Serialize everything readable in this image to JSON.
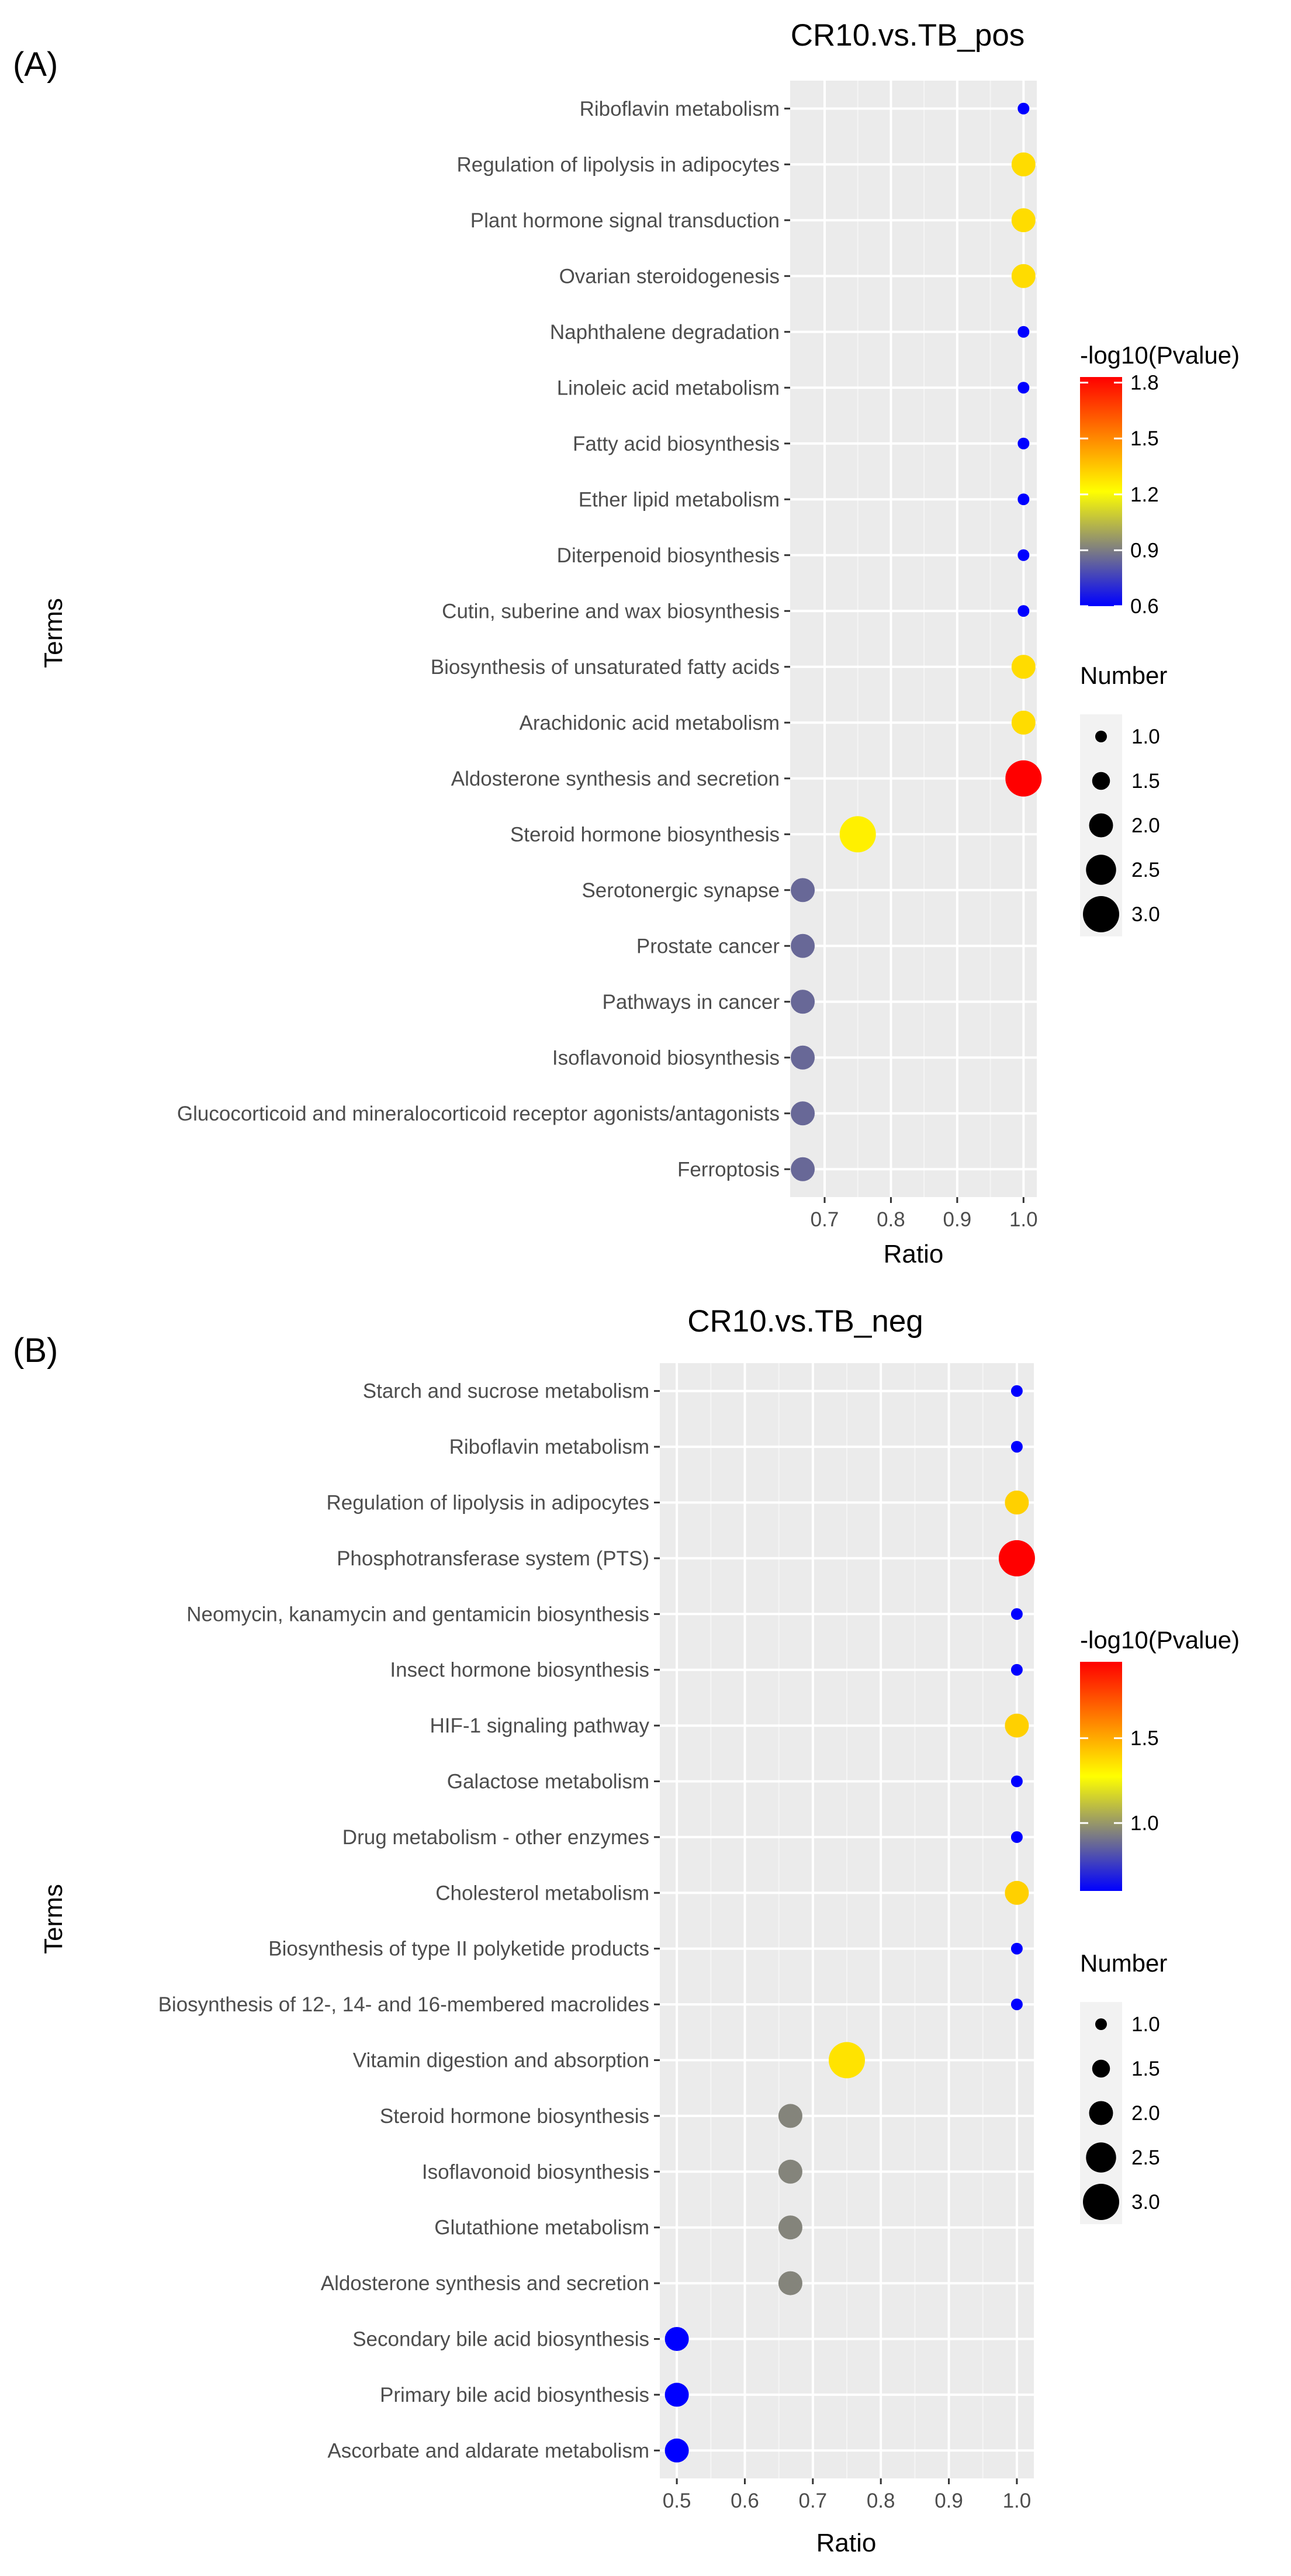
{
  "chart_data": [
    {
      "panel_label": "(A)",
      "type": "scatter",
      "title": "CR10.vs.TB_pos",
      "xlabel": "Ratio",
      "ylabel": "Terms",
      "xlim": [
        0.648,
        1.02
      ],
      "xticks": [
        0.7,
        0.8,
        0.9,
        1.0
      ],
      "xtick_labels": [
        "0.7",
        "0.8",
        "0.9",
        "1.0"
      ],
      "color_legend": {
        "title": "-log10(Pvalue)",
        "min": 0.6,
        "max": 1.83,
        "ticks": [
          0.6,
          0.9,
          1.2,
          1.5,
          1.8
        ],
        "tick_labels": [
          "0.6",
          "0.9",
          "1.2",
          "1.5",
          "1.8"
        ],
        "colors": [
          "#0000ff",
          "#ffff00",
          "#ff0000"
        ]
      },
      "size_legend": {
        "title": "Number",
        "values": [
          1.0,
          1.5,
          2.0,
          2.5,
          3.0
        ],
        "labels": [
          "1.0",
          "1.5",
          "2.0",
          "2.5",
          "3.0"
        ]
      },
      "points": [
        {
          "term": "Riboflavin metabolism",
          "ratio": 1.0,
          "pvalue_log": 0.6,
          "number": 1
        },
        {
          "term": "Regulation of lipolysis in adipocytes",
          "ratio": 1.0,
          "pvalue_log": 1.3,
          "number": 2
        },
        {
          "term": "Plant hormone signal transduction",
          "ratio": 1.0,
          "pvalue_log": 1.3,
          "number": 2
        },
        {
          "term": "Ovarian steroidogenesis",
          "ratio": 1.0,
          "pvalue_log": 1.3,
          "number": 2
        },
        {
          "term": "Naphthalene degradation",
          "ratio": 1.0,
          "pvalue_log": 0.6,
          "number": 1
        },
        {
          "term": "Linoleic acid metabolism",
          "ratio": 1.0,
          "pvalue_log": 0.6,
          "number": 1
        },
        {
          "term": "Fatty acid biosynthesis",
          "ratio": 1.0,
          "pvalue_log": 0.6,
          "number": 1
        },
        {
          "term": "Ether lipid metabolism",
          "ratio": 1.0,
          "pvalue_log": 0.6,
          "number": 1
        },
        {
          "term": "Diterpenoid biosynthesis",
          "ratio": 1.0,
          "pvalue_log": 0.6,
          "number": 1
        },
        {
          "term": "Cutin, suberine and wax biosynthesis",
          "ratio": 1.0,
          "pvalue_log": 0.6,
          "number": 1
        },
        {
          "term": "Biosynthesis of unsaturated fatty acids",
          "ratio": 1.0,
          "pvalue_log": 1.3,
          "number": 2
        },
        {
          "term": "Arachidonic acid metabolism",
          "ratio": 1.0,
          "pvalue_log": 1.3,
          "number": 2
        },
        {
          "term": "Aldosterone synthesis and secretion",
          "ratio": 1.0,
          "pvalue_log": 1.83,
          "number": 3
        },
        {
          "term": "Steroid hormone biosynthesis",
          "ratio": 0.75,
          "pvalue_log": 1.25,
          "number": 3
        },
        {
          "term": "Serotonergic synapse",
          "ratio": 0.667,
          "pvalue_log": 0.85,
          "number": 2
        },
        {
          "term": "Prostate cancer",
          "ratio": 0.667,
          "pvalue_log": 0.85,
          "number": 2
        },
        {
          "term": "Pathways in cancer",
          "ratio": 0.667,
          "pvalue_log": 0.85,
          "number": 2
        },
        {
          "term": "Isoflavonoid biosynthesis",
          "ratio": 0.667,
          "pvalue_log": 0.85,
          "number": 2
        },
        {
          "term": "Glucocorticoid and mineralocorticoid receptor agonists/antagonists",
          "ratio": 0.667,
          "pvalue_log": 0.85,
          "number": 2
        },
        {
          "term": "Ferroptosis",
          "ratio": 0.667,
          "pvalue_log": 0.85,
          "number": 2
        }
      ]
    },
    {
      "panel_label": "(B)",
      "type": "scatter",
      "title": "CR10.vs.TB_neg",
      "xlabel": "Ratio",
      "ylabel": "Terms",
      "xlim": [
        0.475,
        1.025
      ],
      "xticks": [
        0.5,
        0.6,
        0.7,
        0.8,
        0.9,
        1.0
      ],
      "xtick_labels": [
        "0.5",
        "0.6",
        "0.7",
        "0.8",
        "0.9",
        "1.0"
      ],
      "color_legend": {
        "title": "-log10(Pvalue)",
        "min": 0.6,
        "max": 1.95,
        "ticks": [
          1.0,
          1.5
        ],
        "tick_labels": [
          "1.0",
          "1.5"
        ],
        "colors": [
          "#0000ff",
          "#ffff00",
          "#ff0000"
        ]
      },
      "size_legend": {
        "title": "Number",
        "values": [
          1.0,
          1.5,
          2.0,
          2.5,
          3.0
        ],
        "labels": [
          "1.0",
          "1.5",
          "2.0",
          "2.5",
          "3.0"
        ]
      },
      "points": [
        {
          "term": "Starch and sucrose metabolism",
          "ratio": 1.0,
          "pvalue_log": 0.6,
          "number": 1
        },
        {
          "term": "Riboflavin metabolism",
          "ratio": 1.0,
          "pvalue_log": 0.6,
          "number": 1
        },
        {
          "term": "Regulation of lipolysis in adipocytes",
          "ratio": 1.0,
          "pvalue_log": 1.4,
          "number": 2
        },
        {
          "term": "Phosphotransferase system (PTS)",
          "ratio": 1.0,
          "pvalue_log": 1.95,
          "number": 3
        },
        {
          "term": "Neomycin, kanamycin and gentamicin biosynthesis",
          "ratio": 1.0,
          "pvalue_log": 0.6,
          "number": 1
        },
        {
          "term": "Insect hormone biosynthesis",
          "ratio": 1.0,
          "pvalue_log": 0.6,
          "number": 1
        },
        {
          "term": "HIF-1 signaling pathway",
          "ratio": 1.0,
          "pvalue_log": 1.4,
          "number": 2
        },
        {
          "term": "Galactose metabolism",
          "ratio": 1.0,
          "pvalue_log": 0.6,
          "number": 1
        },
        {
          "term": "Drug metabolism - other enzymes",
          "ratio": 1.0,
          "pvalue_log": 0.6,
          "number": 1
        },
        {
          "term": "Cholesterol metabolism",
          "ratio": 1.0,
          "pvalue_log": 1.4,
          "number": 2
        },
        {
          "term": "Biosynthesis of type II polyketide products",
          "ratio": 1.0,
          "pvalue_log": 0.6,
          "number": 1
        },
        {
          "term": "Biosynthesis of 12-, 14- and 16-membered macrolides",
          "ratio": 1.0,
          "pvalue_log": 0.6,
          "number": 1
        },
        {
          "term": "Vitamin digestion and absorption",
          "ratio": 0.75,
          "pvalue_log": 1.35,
          "number": 3
        },
        {
          "term": "Steroid hormone biosynthesis",
          "ratio": 0.667,
          "pvalue_log": 0.95,
          "number": 2
        },
        {
          "term": "Isoflavonoid biosynthesis",
          "ratio": 0.667,
          "pvalue_log": 0.95,
          "number": 2
        },
        {
          "term": "Glutathione metabolism",
          "ratio": 0.667,
          "pvalue_log": 0.95,
          "number": 2
        },
        {
          "term": "Aldosterone synthesis and secretion",
          "ratio": 0.667,
          "pvalue_log": 0.95,
          "number": 2
        },
        {
          "term": "Secondary bile acid biosynthesis",
          "ratio": 0.5,
          "pvalue_log": 0.6,
          "number": 2
        },
        {
          "term": "Primary bile acid biosynthesis",
          "ratio": 0.5,
          "pvalue_log": 0.6,
          "number": 2
        },
        {
          "term": "Ascorbate and aldarate metabolism",
          "ratio": 0.5,
          "pvalue_log": 0.6,
          "number": 2
        }
      ]
    }
  ]
}
